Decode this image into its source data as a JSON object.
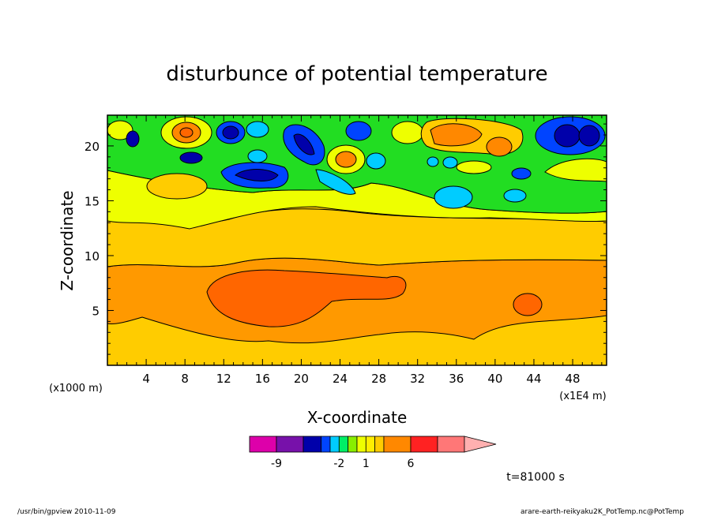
{
  "chart_data": {
    "type": "heatmap",
    "title": "disturbunce of potential temperature",
    "xlabel": "X-coordinate",
    "ylabel": "Z-coordinate",
    "x_unit": "(x1E4 m)",
    "y_unit": "(x1000 m)",
    "xlim": [
      0,
      51.5
    ],
    "ylim": [
      0,
      22.8
    ],
    "x_ticks": [
      4,
      8,
      12,
      16,
      20,
      24,
      28,
      32,
      36,
      40,
      44,
      48
    ],
    "y_ticks": [
      5,
      10,
      15,
      20
    ],
    "time_label": "t=81000 s",
    "colorbar": {
      "labels": [
        {
          "value": -9,
          "text": "-9"
        },
        {
          "value": -2,
          "text": "-2"
        },
        {
          "value": 1,
          "text": "1"
        },
        {
          "value": 6,
          "text": "6"
        }
      ],
      "levels": [
        {
          "from": -12,
          "to": -9,
          "color": "#dd00aa"
        },
        {
          "from": -9,
          "to": -6,
          "color": "#7711aa"
        },
        {
          "from": -6,
          "to": -4,
          "color": "#0000aa"
        },
        {
          "from": -4,
          "to": -3,
          "color": "#0044ff"
        },
        {
          "from": -3,
          "to": -2,
          "color": "#00ccff"
        },
        {
          "from": -2,
          "to": -1,
          "color": "#00ee66"
        },
        {
          "from": -1,
          "to": 0,
          "color": "#88ee00"
        },
        {
          "from": 0,
          "to": 1,
          "color": "#eeff00"
        },
        {
          "from": 1,
          "to": 2,
          "color": "#ffee00"
        },
        {
          "from": 2,
          "to": 3,
          "color": "#ffcc00"
        },
        {
          "from": 3,
          "to": 6,
          "color": "#ff8800"
        },
        {
          "from": 6,
          "to": 9,
          "color": "#ff2222"
        },
        {
          "from": 9,
          "to": 12,
          "color": "#ff7777"
        },
        {
          "from": 12,
          "to": 15,
          "color": "#ffb0b0"
        }
      ]
    },
    "regions": [
      {
        "name": "surface-layer",
        "value": 2.5,
        "color": "#ffcc00"
      },
      {
        "name": "mid-orange-band",
        "value": 4.5,
        "color": "#ff9900"
      },
      {
        "name": "warm-core-12-30",
        "value": 5.5,
        "color": "#ff6600"
      },
      {
        "name": "warm-core-43",
        "value": 5.5,
        "color": "#ff6600"
      },
      {
        "name": "yellow-band",
        "value": 1.5,
        "color": "#ffcc00"
      },
      {
        "name": "pale-yellow-band",
        "value": 0.5,
        "color": "#eeff00"
      },
      {
        "name": "upper-green-layer",
        "value": -1.5,
        "color": "#22dd22"
      }
    ]
  },
  "footer": {
    "left": "/usr/bin/gpview   2010-11-09",
    "right": "arare-earth-reikyaku2K_PotTemp.nc@PotTemp"
  }
}
